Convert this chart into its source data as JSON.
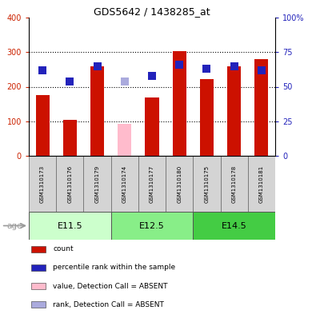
{
  "title": "GDS5642 / 1438285_at",
  "samples": [
    "GSM1310173",
    "GSM1310176",
    "GSM1310179",
    "GSM1310174",
    "GSM1310177",
    "GSM1310180",
    "GSM1310175",
    "GSM1310178",
    "GSM1310181"
  ],
  "counts": [
    175,
    105,
    258,
    0,
    168,
    303,
    222,
    258,
    280
  ],
  "counts_absent": [
    0,
    0,
    0,
    92,
    0,
    0,
    0,
    0,
    0
  ],
  "ranks": [
    62,
    54,
    65,
    0,
    58,
    66,
    63,
    65,
    62
  ],
  "ranks_absent": [
    0,
    0,
    0,
    54,
    0,
    0,
    0,
    0,
    0
  ],
  "is_absent": [
    false,
    false,
    false,
    true,
    false,
    false,
    false,
    false,
    false
  ],
  "age_groups": [
    {
      "label": "E11.5",
      "start": 0,
      "end": 3,
      "color": "#ccffcc"
    },
    {
      "label": "E12.5",
      "start": 3,
      "end": 6,
      "color": "#88ee88"
    },
    {
      "label": "E14.5",
      "start": 6,
      "end": 9,
      "color": "#44cc44"
    }
  ],
  "bar_color_present": "#cc1100",
  "bar_color_absent": "#ffbbcc",
  "rank_color_present": "#2222bb",
  "rank_color_absent": "#aaaadd",
  "left_ylim": [
    0,
    400
  ],
  "right_ylim": [
    0,
    100
  ],
  "left_yticks": [
    0,
    100,
    200,
    300,
    400
  ],
  "right_yticks": [
    0,
    25,
    50,
    75,
    100
  ],
  "right_yticklabels": [
    "0",
    "25",
    "50",
    "75",
    "100%"
  ],
  "grid_values": [
    100,
    200,
    300
  ],
  "bar_width": 0.5,
  "rank_size": 50,
  "left_tick_color": "#cc2200",
  "right_tick_color": "#2222bb",
  "sample_bg": "#d4d4d4",
  "legend": [
    {
      "color": "#cc1100",
      "label": "count"
    },
    {
      "color": "#2222bb",
      "label": "percentile rank within the sample"
    },
    {
      "color": "#ffbbcc",
      "label": "value, Detection Call = ABSENT"
    },
    {
      "color": "#aaaadd",
      "label": "rank, Detection Call = ABSENT"
    }
  ]
}
